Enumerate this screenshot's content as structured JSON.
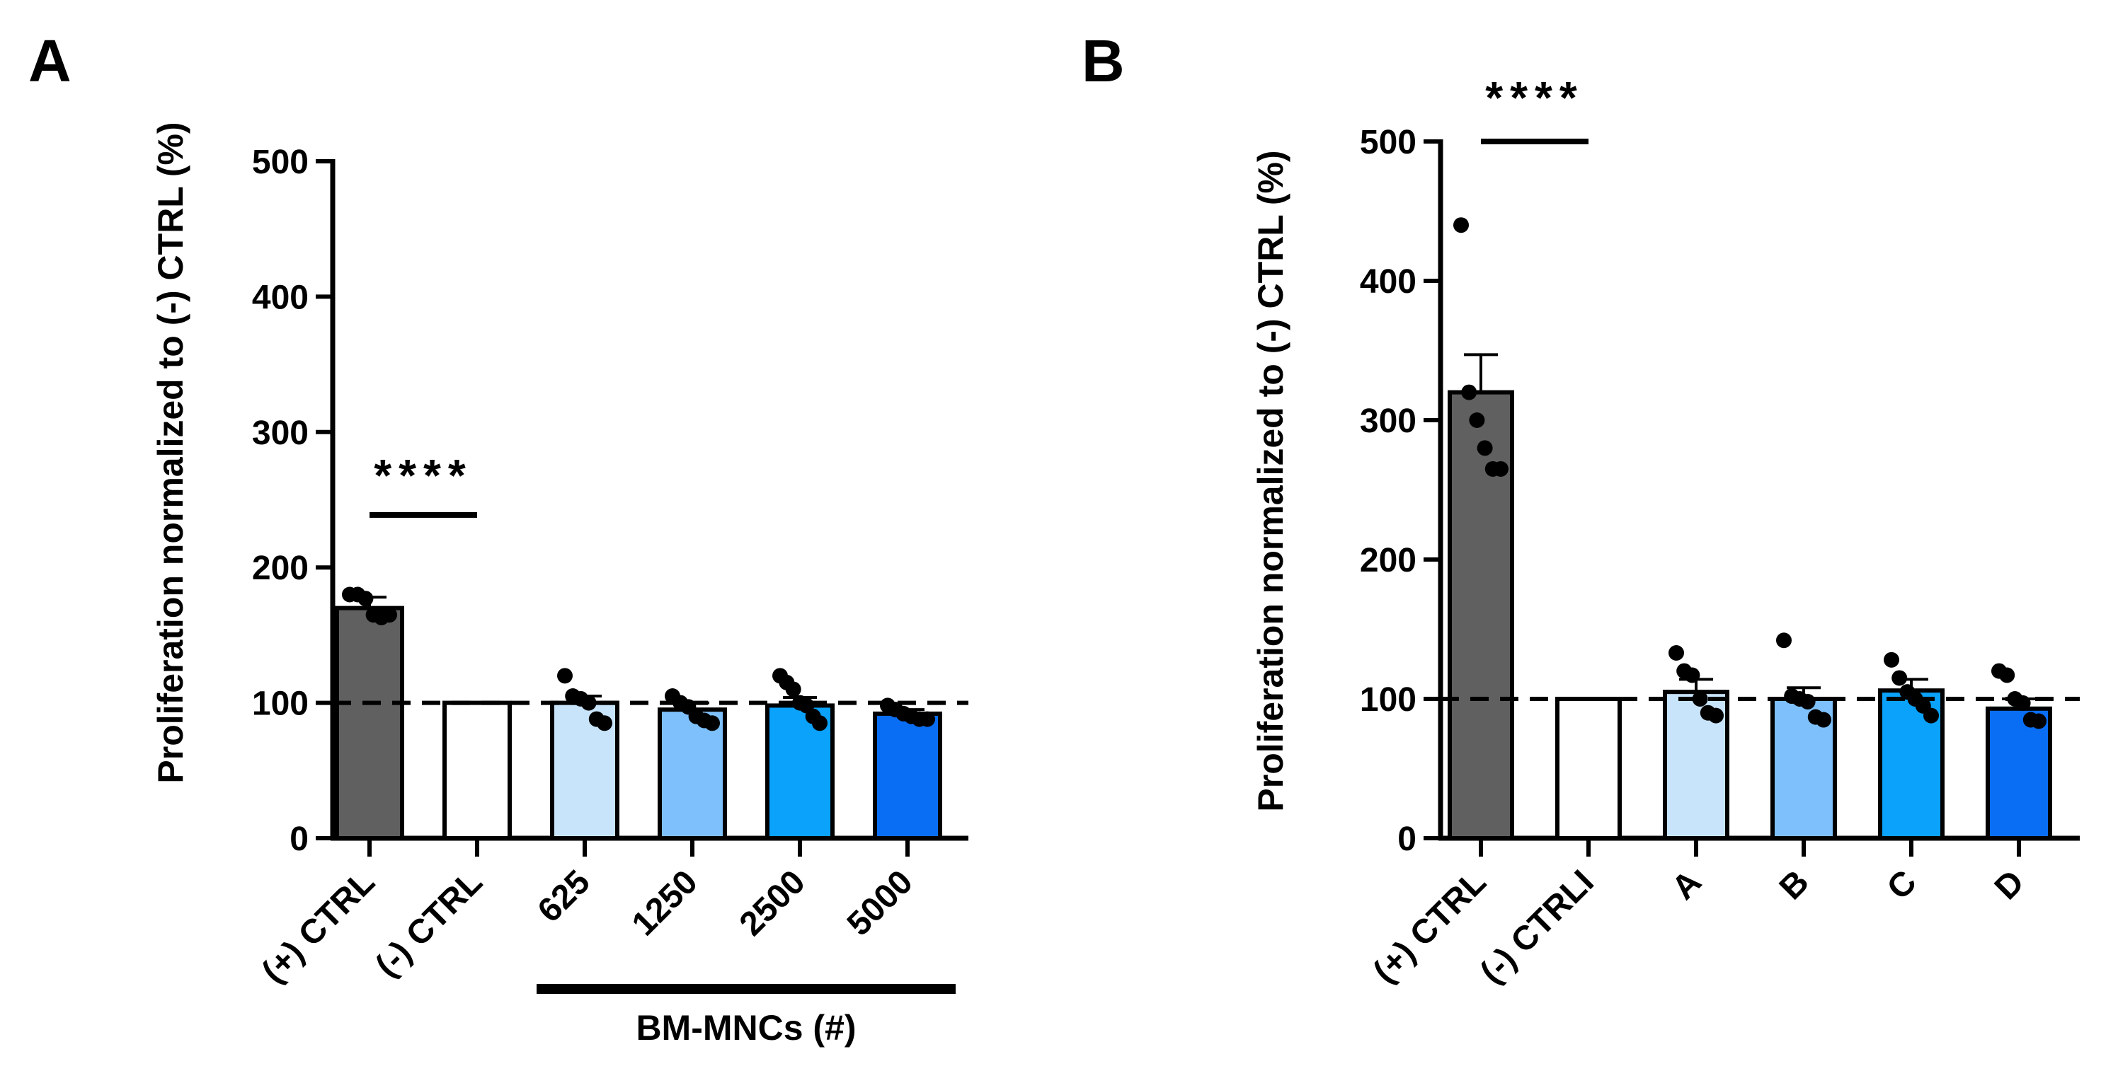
{
  "chart_data": [
    {
      "panel_label": "A",
      "type": "bar",
      "ylabel": "Proliferation normalized to (-) CTRL  (%)",
      "ylim": [
        0,
        500
      ],
      "yticks": [
        0,
        100,
        200,
        300,
        400,
        500
      ],
      "reference_line": 100,
      "categories": [
        "(+) CTRL",
        "(-) CTRL",
        "625",
        "1250",
        "2500",
        "5000"
      ],
      "values": [
        170,
        100,
        100,
        95,
        98,
        92
      ],
      "errors": [
        8,
        0,
        5,
        5,
        6,
        3
      ],
      "colors": [
        "#606060",
        "#ffffff",
        "#c8e4fa",
        "#7ec0fb",
        "#0aa2fa",
        "#0a6ef5"
      ],
      "points": [
        [
          180,
          180,
          177,
          165,
          163,
          165
        ],
        [],
        [
          120,
          105,
          103,
          100,
          88,
          85
        ],
        [
          105,
          100,
          97,
          90,
          87,
          85
        ],
        [
          120,
          115,
          110,
          100,
          98,
          90,
          85
        ],
        [
          98,
          95,
          92,
          90,
          88,
          88
        ]
      ],
      "significance": {
        "label": "****",
        "from": 0,
        "to": 1
      },
      "group_bracket": {
        "label": "BM-MNCs (#)",
        "from": 2,
        "to": 5
      }
    },
    {
      "panel_label": "B",
      "type": "bar",
      "ylabel": "Proliferation normalized to (-) CTRL  (%)",
      "ylim": [
        0,
        500
      ],
      "yticks": [
        0,
        100,
        200,
        300,
        400,
        500
      ],
      "reference_line": 100,
      "categories": [
        "(+) CTRL",
        "(-) CTRLI",
        "A",
        "B",
        "C",
        "D"
      ],
      "values": [
        320,
        100,
        105,
        100,
        106,
        93
      ],
      "errors": [
        27,
        0,
        9,
        8,
        8,
        7
      ],
      "colors": [
        "#606060",
        "#ffffff",
        "#c8e4fa",
        "#7ec0fb",
        "#0aa2fa",
        "#0a6ef5"
      ],
      "points": [
        [
          440,
          320,
          300,
          280,
          265,
          265
        ],
        [],
        [
          133,
          120,
          117,
          100,
          90,
          88
        ],
        [
          142,
          102,
          100,
          98,
          87,
          85
        ],
        [
          128,
          115,
          105,
          100,
          95,
          88
        ],
        [
          120,
          117,
          100,
          97,
          85,
          84
        ]
      ],
      "significance": {
        "label": "****",
        "from": 0,
        "to": 1
      }
    }
  ]
}
